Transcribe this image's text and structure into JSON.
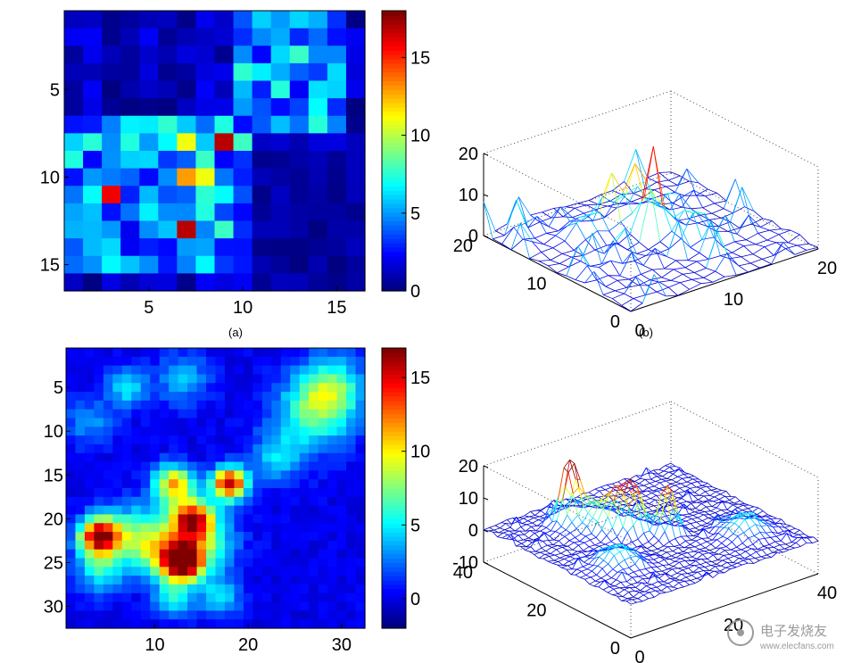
{
  "chart_data": [
    {
      "type": "heatmap",
      "panel": "a",
      "caption": "(a)",
      "grid": [
        16,
        16
      ],
      "x_ticks": [
        "5",
        "10",
        "15"
      ],
      "y_ticks": [
        "5",
        "10",
        "15"
      ],
      "colorbar_ticks": [
        "0",
        "5",
        "10",
        "15"
      ],
      "clim": [
        0,
        18
      ],
      "peak_values": [
        {
          "x": 9,
          "y": 8,
          "value": 17
        },
        {
          "x": 7,
          "y": 13,
          "value": 17
        },
        {
          "x": 3,
          "y": 11,
          "value": 16
        },
        {
          "x": 7,
          "y": 10,
          "value": 13
        },
        {
          "x": 7,
          "y": 8,
          "value": 11
        },
        {
          "x": 8,
          "y": 10,
          "value": 11
        }
      ]
    },
    {
      "type": "surface",
      "panel": "b",
      "caption": "(b)",
      "z_ticks": [
        "0",
        "10",
        "20"
      ],
      "x_ticks": [
        "0",
        "10",
        "20"
      ],
      "y_ticks": [
        "0",
        "10",
        "20"
      ],
      "zlim": [
        0,
        20
      ],
      "xlim": [
        0,
        20
      ],
      "ylim": [
        0,
        20
      ]
    },
    {
      "type": "heatmap",
      "panel": "c",
      "caption": "",
      "grid": [
        32,
        32
      ],
      "x_ticks": [
        "10",
        "20",
        "30"
      ],
      "y_ticks": [
        "5",
        "10",
        "15",
        "20",
        "25",
        "30"
      ],
      "colorbar_ticks": [
        "0",
        "5",
        "10",
        "15"
      ],
      "clim": [
        -2,
        17
      ],
      "peak_values": [
        {
          "x": 13,
          "y": 25,
          "value": 17
        },
        {
          "x": 4,
          "y": 22,
          "value": 16
        },
        {
          "x": 18,
          "y": 16,
          "value": 16
        },
        {
          "x": 14,
          "y": 20,
          "value": 14
        }
      ]
    },
    {
      "type": "surface",
      "panel": "d",
      "caption": "",
      "z_ticks": [
        "-10",
        "0",
        "10",
        "20"
      ],
      "x_ticks": [
        "0",
        "20",
        "40"
      ],
      "y_ticks": [
        "0",
        "20",
        "40"
      ],
      "zlim": [
        -10,
        20
      ],
      "xlim": [
        0,
        40
      ],
      "ylim": [
        0,
        40
      ]
    }
  ],
  "watermark": "电子发烧友",
  "watermark_url": "www.elecfans.com"
}
